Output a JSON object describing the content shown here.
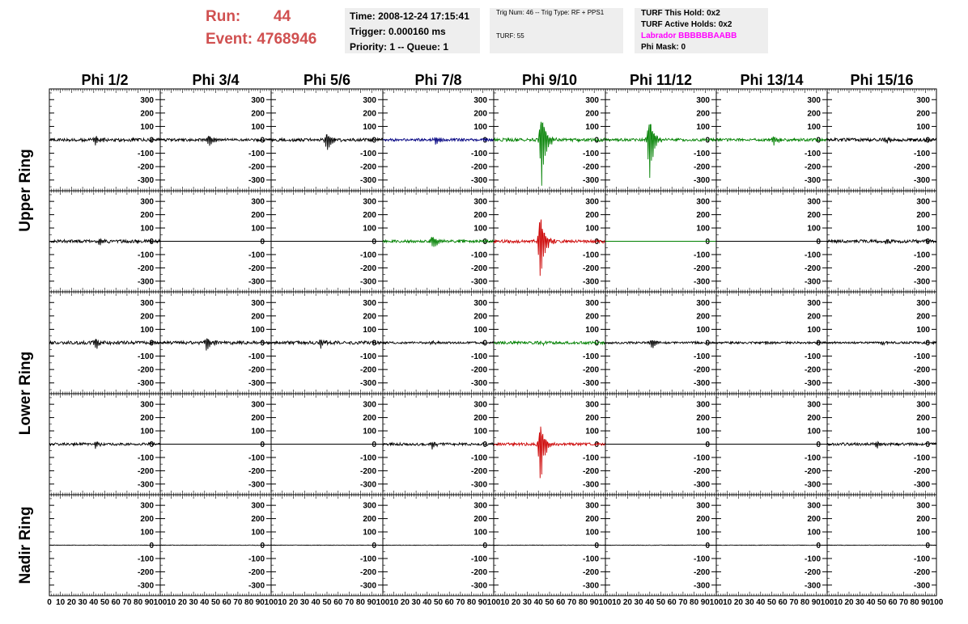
{
  "header": {
    "run_label": "Run:",
    "run_value": "44",
    "event_label": "Event:",
    "event_value": "4768946",
    "time": "Time: 2008-12-24 17:15:41",
    "trigger": "Trigger: 0.000160 ms",
    "priority": "Priority: 1 -- Queue: 1",
    "trig_num": "Trig Num: 46 -- Trig Type: RF + PPS1",
    "turf": "TURF: 55",
    "turf_hold": "TURF This Hold: 0x2",
    "turf_active": "TURF Active Holds: 0x2",
    "labrador": "Labrador BBBBBBAABB",
    "phi_mask": "Phi Mask: 0"
  },
  "colors": {
    "run_red": "#d05050",
    "labrador_magenta": "#ff00ff",
    "trace_black": "#000000",
    "trace_green": "#008000",
    "trace_red": "#cc0000",
    "trace_blue": "#000080",
    "info_box_bg": "#eeeeee"
  },
  "chart_data": {
    "type": "line",
    "phi_labels": [
      "Phi 1/2",
      "Phi 3/4",
      "Phi 5/6",
      "Phi 7/8",
      "Phi 9/10",
      "Phi 11/12",
      "Phi 13/14",
      "Phi 15/16"
    ],
    "ring_labels": [
      "Upper Ring",
      "Lower Ring",
      "Nadir Ring"
    ],
    "yticks": [
      "300",
      "200",
      "100",
      "0",
      "-100",
      "-200",
      "-300"
    ],
    "ytick_values": [
      300,
      200,
      100,
      0,
      -100,
      -200,
      -300
    ],
    "ylim": [
      -380,
      380
    ],
    "xlim": [
      0,
      100
    ],
    "xtick_labels": [
      [
        "0",
        "10",
        "20",
        "30",
        "40",
        "50",
        "60",
        "70",
        "80",
        "90",
        "100"
      ],
      [
        "0",
        "10",
        "20",
        "30",
        "40",
        "50",
        "60",
        "70",
        "80",
        "90",
        "100"
      ],
      [
        "0",
        "10",
        "20",
        "30",
        "40",
        "50",
        "60",
        "70",
        "80",
        "90",
        "100"
      ],
      [
        "0",
        "10",
        "20",
        "30",
        "40",
        "50",
        "60",
        "70",
        "80",
        "90",
        "100"
      ],
      [
        "0",
        "10",
        "20",
        "30",
        "40",
        "50",
        "60",
        "70",
        "80",
        "90",
        "100"
      ],
      [
        "0",
        "10",
        "20",
        "30",
        "40",
        "50",
        "60",
        "70",
        "80",
        "90",
        "100"
      ],
      [
        "0",
        "10",
        "20",
        "30",
        "40",
        "50",
        "60",
        "70",
        "80",
        "90",
        "100"
      ],
      [
        "0",
        "10",
        "20",
        "30",
        "40",
        "50",
        "60",
        "70",
        "80",
        "90",
        "100"
      ]
    ],
    "panels": [
      [
        {
          "color": "black",
          "noise": 12,
          "peak": 45,
          "peakAt": 42
        },
        {
          "color": "black",
          "noise": 10,
          "peak": 60,
          "peakAt": 44
        },
        {
          "color": "black",
          "noise": 12,
          "peak": 95,
          "peakAt": 50
        },
        {
          "color": "blue",
          "noise": 10,
          "peak": 40,
          "peakAt": 48
        },
        {
          "color": "green",
          "noise": 12,
          "peak": 350,
          "peakAt": 43
        },
        {
          "color": "green",
          "noise": 10,
          "peak": 300,
          "peakAt": 40
        },
        {
          "color": "green",
          "noise": 10,
          "peak": 45,
          "peakAt": 52
        },
        {
          "color": "black",
          "noise": 12,
          "peak": 25,
          "peakAt": 55
        }
      ],
      [
        {
          "color": "black",
          "noise": 12,
          "peak": 40,
          "peakAt": 45
        },
        {
          "color": "black",
          "noise": 0,
          "peak": 0,
          "peakAt": 0
        },
        {
          "color": "black",
          "noise": 0,
          "peak": 0,
          "peakAt": 0
        },
        {
          "color": "green",
          "noise": 10,
          "peak": 70,
          "peakAt": 45
        },
        {
          "color": "red",
          "noise": 12,
          "peak": 350,
          "peakAt": 42
        },
        {
          "color": "green",
          "noise": 0,
          "peak": 0,
          "peakAt": 0
        },
        {
          "color": "black",
          "noise": 0,
          "peak": 0,
          "peakAt": 0
        },
        {
          "color": "black",
          "noise": 12,
          "peak": 25,
          "peakAt": 55
        }
      ],
      [
        {
          "color": "black",
          "noise": 12,
          "peak": 50,
          "peakAt": 42
        },
        {
          "color": "black",
          "noise": 12,
          "peak": 70,
          "peakAt": 42
        },
        {
          "color": "black",
          "noise": 12,
          "peak": 40,
          "peakAt": 45
        },
        {
          "color": "black",
          "noise": 8,
          "peak": 20,
          "peakAt": 45
        },
        {
          "color": "green",
          "noise": 10,
          "peak": 25,
          "peakAt": 42
        },
        {
          "color": "black",
          "noise": 8,
          "peak": 60,
          "peakAt": 42
        },
        {
          "color": "black",
          "noise": 8,
          "peak": 20,
          "peakAt": 45
        },
        {
          "color": "black",
          "noise": 8,
          "peak": 15,
          "peakAt": 50
        }
      ],
      [
        {
          "color": "black",
          "noise": 10,
          "peak": 30,
          "peakAt": 42
        },
        {
          "color": "black",
          "noise": 0,
          "peak": 0,
          "peakAt": 0
        },
        {
          "color": "black",
          "noise": 0,
          "peak": 0,
          "peakAt": 0
        },
        {
          "color": "black",
          "noise": 10,
          "peak": 35,
          "peakAt": 45
        },
        {
          "color": "red",
          "noise": 10,
          "peak": 300,
          "peakAt": 42
        },
        {
          "color": "black",
          "noise": 0,
          "peak": 0,
          "peakAt": 0
        },
        {
          "color": "black",
          "noise": 0,
          "peak": 0,
          "peakAt": 0
        },
        {
          "color": "black",
          "noise": 10,
          "peak": 35,
          "peakAt": 45
        }
      ],
      [
        {
          "color": "black",
          "noise": 2,
          "peak": 0,
          "peakAt": 0
        },
        {
          "color": "black",
          "noise": 2,
          "peak": 0,
          "peakAt": 0
        },
        {
          "color": "black",
          "noise": 2,
          "peak": 0,
          "peakAt": 0
        },
        {
          "color": "black",
          "noise": 2,
          "peak": 0,
          "peakAt": 0
        },
        {
          "color": "black",
          "noise": 2,
          "peak": 0,
          "peakAt": 0
        },
        {
          "color": "black",
          "noise": 2,
          "peak": 0,
          "peakAt": 0
        },
        {
          "color": "black",
          "noise": 2,
          "peak": 0,
          "peakAt": 0
        },
        {
          "color": "black",
          "noise": 2,
          "peak": 0,
          "peakAt": 0
        }
      ]
    ]
  }
}
